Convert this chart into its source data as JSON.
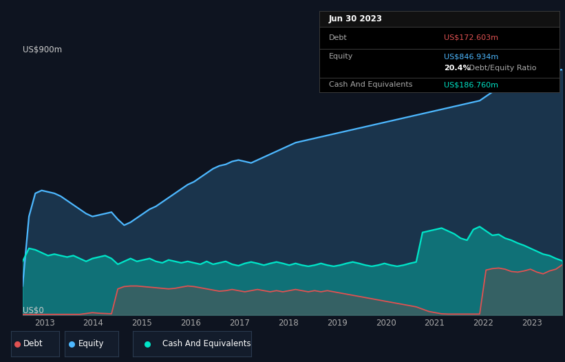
{
  "background_color": "#0e1420",
  "plot_bg_color": "#0e1420",
  "ylabel": "US$900m",
  "y0_label": "US$0",
  "x_ticks": [
    2013,
    2014,
    2015,
    2016,
    2017,
    2018,
    2019,
    2020,
    2021,
    2022,
    2023
  ],
  "tooltip": {
    "date": "Jun 30 2023",
    "debt_label": "Debt",
    "debt_value": "US$172.603m",
    "equity_label": "Equity",
    "equity_value": "US$846.934m",
    "ratio": "20.4%",
    "ratio_label": " Debt/Equity Ratio",
    "cash_label": "Cash And Equivalents",
    "cash_value": "US$186.760m"
  },
  "debt_color": "#e05252",
  "equity_color": "#4db8ff",
  "cash_color": "#00e5c8",
  "grid_color": "#1e2a3a",
  "legend_bg": "#131c2b",
  "legend_border": "#2a3a4f",
  "equity_data": [
    100,
    340,
    420,
    430,
    425,
    420,
    410,
    395,
    380,
    365,
    350,
    340,
    345,
    350,
    355,
    330,
    310,
    320,
    335,
    350,
    365,
    375,
    390,
    405,
    420,
    435,
    450,
    460,
    475,
    490,
    505,
    515,
    520,
    530,
    535,
    530,
    525,
    535,
    545,
    555,
    565,
    575,
    585,
    595,
    600,
    605,
    610,
    615,
    620,
    625,
    630,
    635,
    640,
    645,
    650,
    655,
    660,
    665,
    670,
    675,
    680,
    685,
    690,
    695,
    700,
    705,
    710,
    715,
    720,
    725,
    730,
    735,
    740,
    755,
    770,
    790,
    810,
    820,
    810,
    795,
    790,
    800,
    820,
    840,
    845,
    847
  ],
  "cash_data": [
    185,
    230,
    225,
    215,
    205,
    210,
    205,
    200,
    205,
    195,
    185,
    195,
    200,
    205,
    195,
    175,
    185,
    195,
    185,
    190,
    195,
    185,
    180,
    190,
    185,
    180,
    185,
    180,
    175,
    185,
    175,
    180,
    185,
    175,
    170,
    178,
    183,
    178,
    172,
    178,
    183,
    178,
    172,
    178,
    172,
    168,
    172,
    178,
    172,
    168,
    172,
    178,
    183,
    178,
    172,
    168,
    172,
    178,
    172,
    168,
    172,
    178,
    183,
    285,
    290,
    295,
    300,
    290,
    280,
    265,
    258,
    295,
    305,
    290,
    275,
    278,
    265,
    258,
    248,
    240,
    230,
    220,
    210,
    205,
    195,
    187
  ],
  "debt_data": [
    2,
    2,
    2,
    2,
    2,
    2,
    2,
    2,
    2,
    2,
    5,
    8,
    6,
    5,
    4,
    90,
    98,
    100,
    100,
    98,
    96,
    94,
    92,
    90,
    92,
    96,
    100,
    98,
    94,
    90,
    86,
    82,
    84,
    88,
    84,
    80,
    84,
    88,
    84,
    80,
    84,
    80,
    84,
    88,
    84,
    80,
    84,
    80,
    84,
    80,
    76,
    72,
    68,
    64,
    60,
    56,
    52,
    48,
    44,
    40,
    36,
    32,
    28,
    20,
    12,
    8,
    4,
    3,
    3,
    3,
    3,
    3,
    3,
    155,
    160,
    162,
    158,
    150,
    148,
    152,
    158,
    148,
    142,
    152,
    158,
    173
  ],
  "ylim": [
    0,
    900
  ],
  "xlim_start": 2012.55,
  "xlim_end": 2023.62
}
